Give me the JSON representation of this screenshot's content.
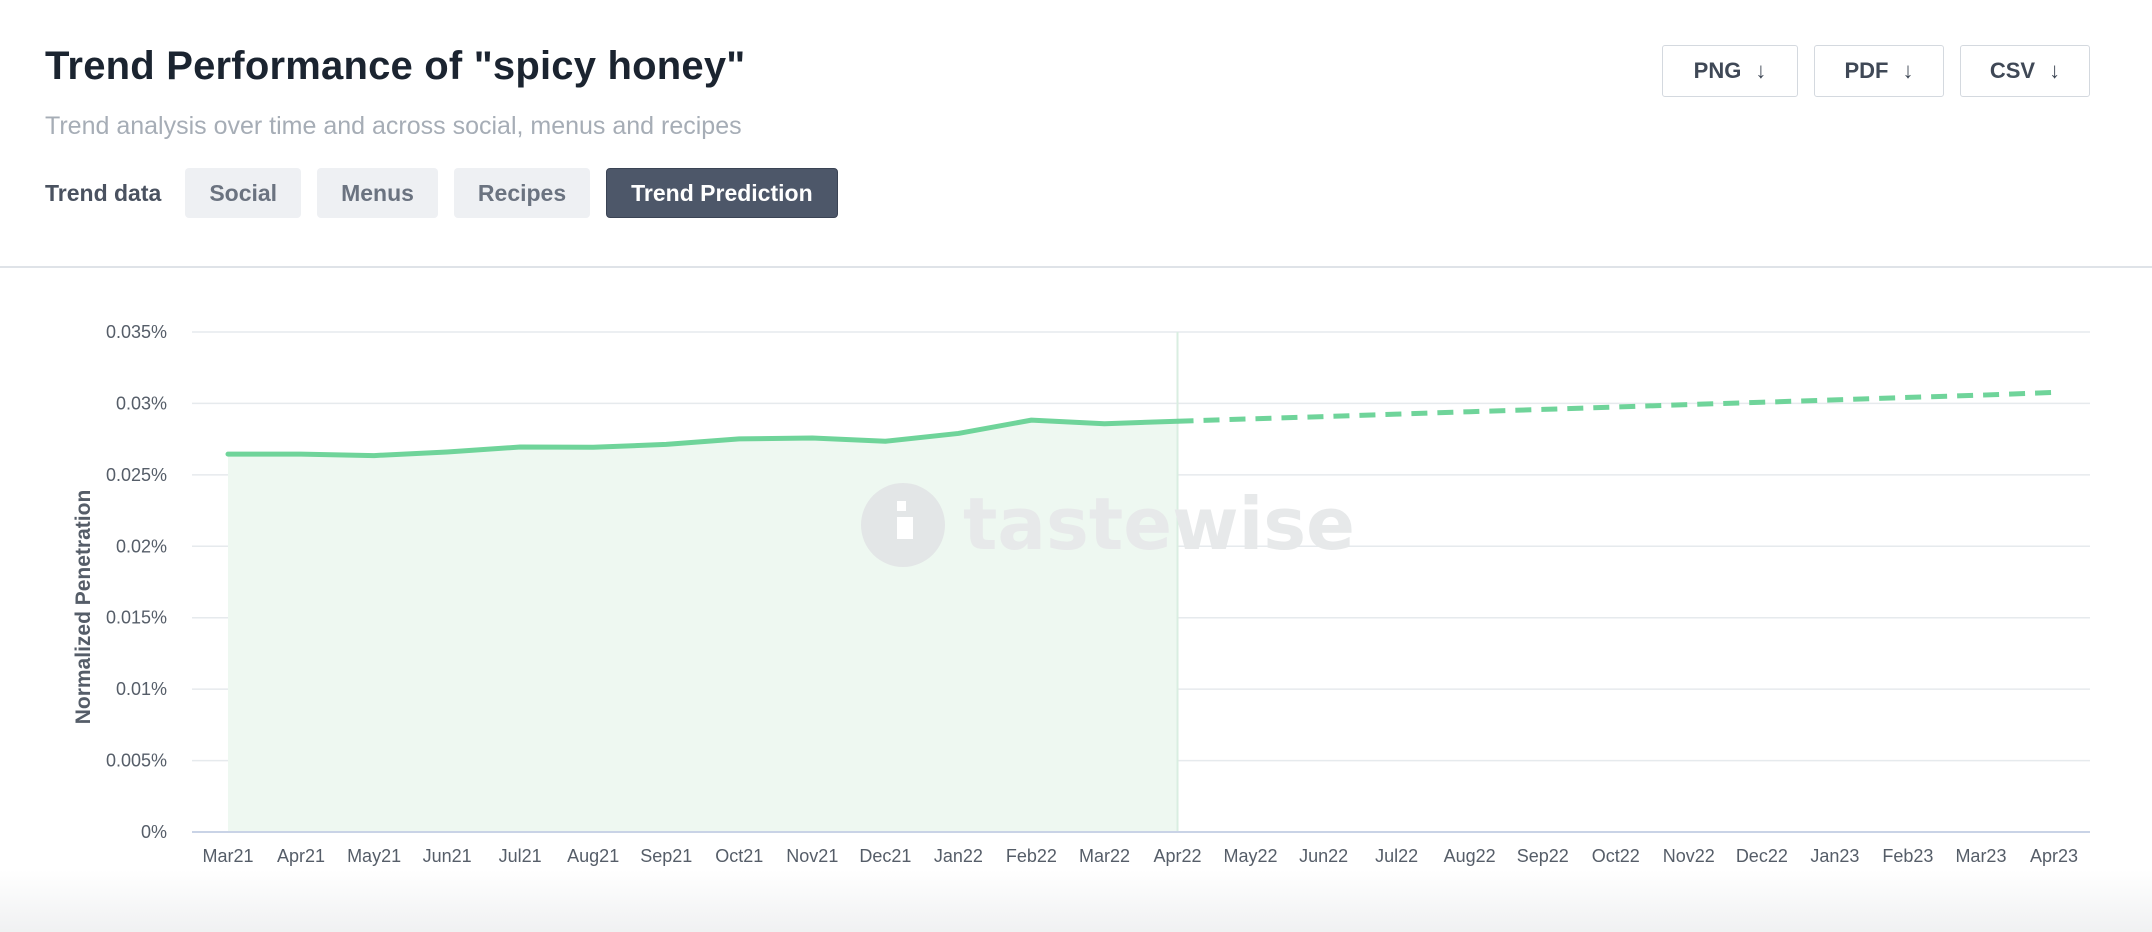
{
  "header": {
    "title": "Trend Performance of \"spicy honey\"",
    "subtitle": "Trend analysis over time and across social, menus and recipes",
    "trend_data_label": "Trend data",
    "tabs": [
      {
        "label": "Social",
        "active": false
      },
      {
        "label": "Menus",
        "active": false
      },
      {
        "label": "Recipes",
        "active": false
      },
      {
        "label": "Trend Prediction",
        "active": true
      }
    ]
  },
  "exports": {
    "png_label": "PNG",
    "pdf_label": "PDF",
    "csv_label": "CSV",
    "icon": "arrow-down-icon"
  },
  "watermark": {
    "text": "tastewise",
    "icon": "tastewise-logo-icon"
  },
  "colors": {
    "line": "#6fd49a",
    "area_fill": "#eef8f1",
    "grid": "#e6eaed",
    "active_tab": "#4d5769",
    "divider": "#d9eee1"
  },
  "chart_data": {
    "type": "line",
    "title": "",
    "xlabel": "",
    "ylabel": "Normalized Penetration",
    "categories": [
      "Mar21",
      "Apr21",
      "May21",
      "Jun21",
      "Jul21",
      "Aug21",
      "Sep21",
      "Oct21",
      "Nov21",
      "Dec21",
      "Jan22",
      "Feb22",
      "Mar22",
      "Apr22",
      "May22",
      "Jun22",
      "Jul22",
      "Aug22",
      "Sep22",
      "Oct22",
      "Nov22",
      "Dec22",
      "Jan23",
      "Feb23",
      "Mar23",
      "Apr23"
    ],
    "ylim": [
      0,
      0.035
    ],
    "yticks": [
      0,
      0.005,
      0.01,
      0.015,
      0.02,
      0.025,
      0.03,
      0.035
    ],
    "ytick_labels": [
      "0%",
      "0.005%",
      "0.01%",
      "0.015%",
      "0.02%",
      "0.025%",
      "0.03%",
      "0.035%"
    ],
    "grid": true,
    "series": [
      {
        "style": "solid-area",
        "values": [
          0.02645,
          0.02645,
          0.02635,
          0.0266,
          0.02695,
          0.02693,
          0.02713,
          0.02752,
          0.02758,
          0.02735,
          0.0279,
          0.02883,
          0.02858,
          0.02875,
          null,
          null,
          null,
          null,
          null,
          null,
          null,
          null,
          null,
          null,
          null,
          null
        ]
      },
      {
        "style": "dashed",
        "values": [
          null,
          null,
          null,
          null,
          null,
          null,
          null,
          null,
          null,
          null,
          null,
          null,
          null,
          0.02875,
          0.02892,
          0.02908,
          0.02925,
          0.02942,
          0.02958,
          0.02975,
          0.02992,
          0.03008,
          0.03025,
          0.03042,
          0.03058,
          0.03077
        ]
      }
    ],
    "prediction_start": "Apr22"
  }
}
